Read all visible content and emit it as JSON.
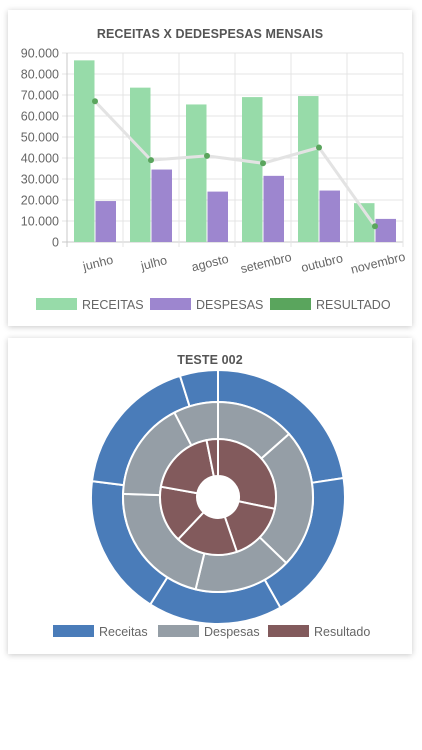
{
  "chart_data": [
    {
      "type": "bar",
      "title": "RECEITAS X DEDESPESAS MENSAIS",
      "categories": [
        "junho",
        "julho",
        "agosto",
        "setembro",
        "outubro",
        "novembro"
      ],
      "ylim": [
        0,
        90000
      ],
      "yticks": [
        "0",
        "10.000",
        "20.000",
        "30.000",
        "40.000",
        "50.000",
        "60.000",
        "70.000",
        "80.000",
        "90.000"
      ],
      "grid": true,
      "legend_position": "bottom",
      "series": [
        {
          "name": "RECEITAS",
          "type": "bar",
          "color": "#97dba9",
          "values": [
            86500,
            73500,
            65500,
            69000,
            69500,
            18500
          ]
        },
        {
          "name": "DESPESAS",
          "type": "bar",
          "color": "#9d86cf",
          "values": [
            19500,
            34500,
            24000,
            31500,
            24500,
            11000
          ]
        },
        {
          "name": "RESULTADO",
          "type": "line",
          "color": "#5aa55d",
          "line_color": "#e3e3e3",
          "values": [
            67000,
            39000,
            41000,
            37500,
            45000,
            7500
          ]
        }
      ]
    },
    {
      "type": "pie",
      "subtype": "nested-doughnut",
      "title": "TESTE 002",
      "legend_position": "bottom",
      "series": [
        {
          "name": "Receitas",
          "color": "#4a7cb9",
          "values": [
            86500,
            73500,
            65500,
            69000,
            69500,
            18500
          ]
        },
        {
          "name": "Despesas",
          "color": "#959ea6",
          "values": [
            19500,
            34500,
            24000,
            31500,
            24500,
            11000
          ]
        },
        {
          "name": "Resultado",
          "color": "#825a5c",
          "values": [
            67000,
            39000,
            41000,
            37500,
            45000,
            7500
          ]
        }
      ]
    }
  ]
}
